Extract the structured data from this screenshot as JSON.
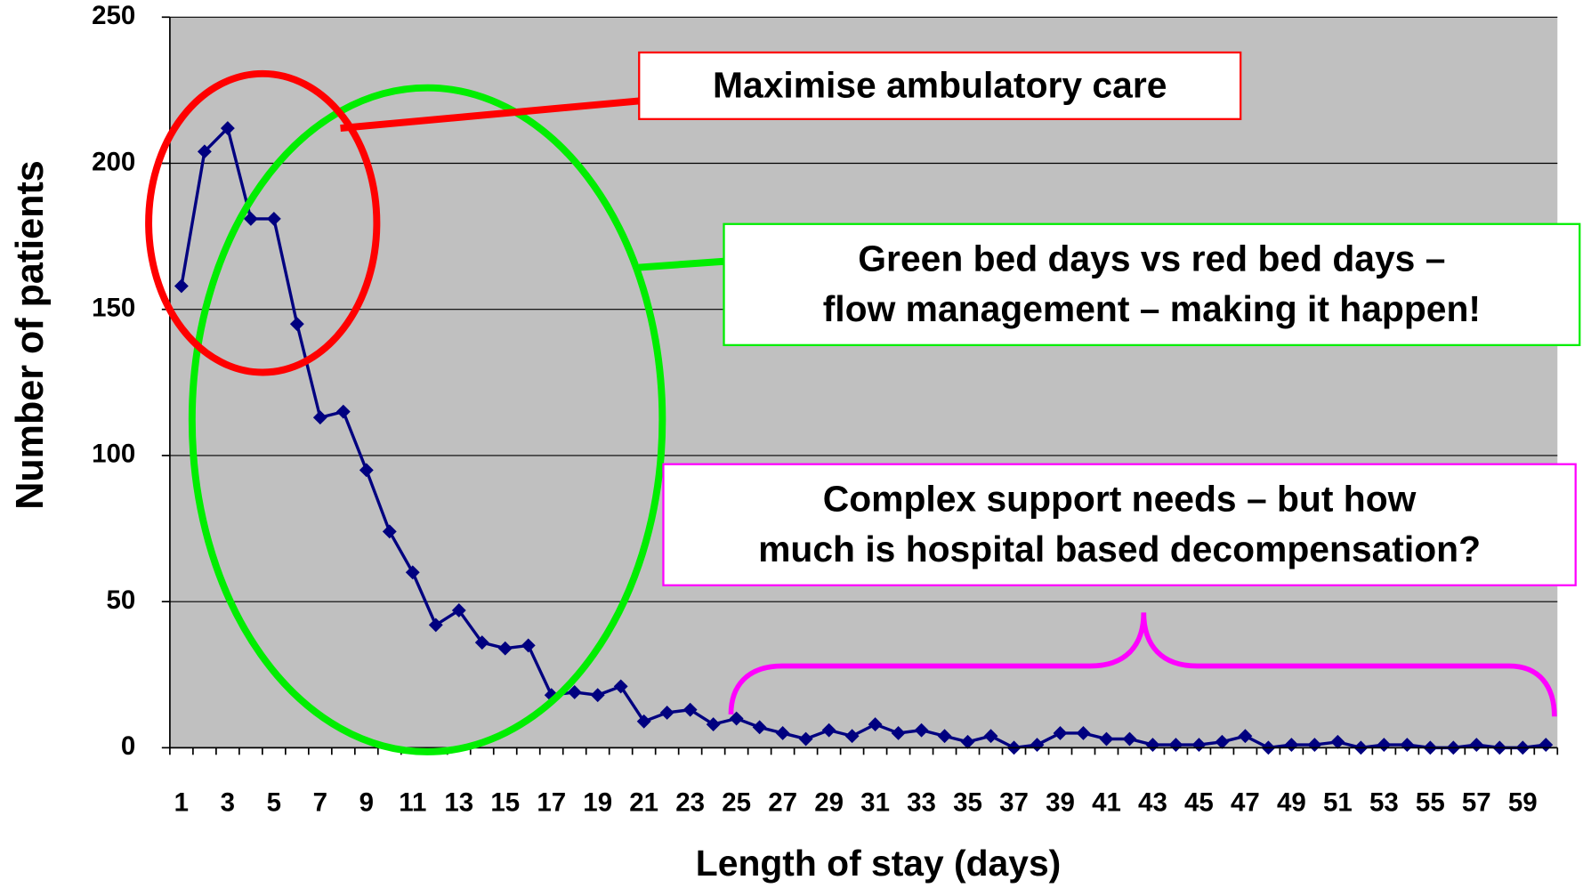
{
  "chart_data": {
    "type": "line",
    "x_label": "Length of stay (days)",
    "y_label": "Number of patients",
    "categories": [
      1,
      null,
      3,
      null,
      5,
      null,
      7,
      null,
      9,
      null,
      11,
      null,
      13,
      null,
      15,
      null,
      17,
      null,
      19,
      null,
      21,
      null,
      23,
      null,
      25,
      null,
      27,
      null,
      29,
      null,
      31,
      null,
      33,
      null,
      35,
      null,
      37,
      null,
      39,
      null,
      41,
      null,
      43,
      null,
      45,
      null,
      47,
      null,
      49,
      null,
      51,
      null,
      53,
      null,
      55,
      null,
      57,
      null,
      59,
      null
    ],
    "series": [
      {
        "color": "#000080",
        "values": [
          158,
          204,
          212,
          181,
          181,
          145,
          113,
          115,
          95,
          74,
          60,
          42,
          47,
          36,
          34,
          35,
          18,
          19,
          18,
          21,
          9,
          12,
          13,
          8,
          10,
          7,
          5,
          3,
          6,
          4,
          8,
          5,
          6,
          4,
          2,
          4,
          0,
          1,
          5,
          5,
          3,
          3,
          1,
          1,
          1,
          2,
          4,
          0,
          1,
          1,
          2,
          0,
          1,
          1,
          0,
          0,
          1,
          0,
          0,
          1
        ]
      }
    ],
    "ylim": [
      0,
      250
    ],
    "yticks": [
      0,
      50,
      100,
      150,
      200,
      250
    ],
    "grid": true,
    "annotations": [
      {
        "lines": [
          "Maximise ambulatory care"
        ],
        "color": "#ff0000"
      },
      {
        "lines": [
          "Green bed days vs red bed days –",
          "flow management – making it happen!"
        ],
        "color": "#00ee00"
      },
      {
        "lines": [
          "Complex support needs – but how",
          "much is hospital based decompensation?"
        ],
        "color": "#ff00ff"
      }
    ]
  }
}
